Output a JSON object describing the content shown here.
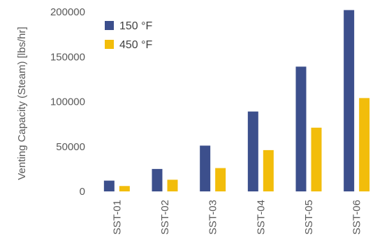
{
  "chart_data": {
    "type": "bar",
    "title": "",
    "xlabel": "",
    "ylabel": "Venting Capacity (Steam) [lbs/hr]",
    "categories": [
      "SST-01",
      "SST-02",
      "SST-03",
      "SST-04",
      "SST-05",
      "SST-06"
    ],
    "series": [
      {
        "name": "150 °F",
        "color": "#3c4f8c",
        "values": [
          12000,
          25000,
          51000,
          89000,
          139000,
          202000
        ]
      },
      {
        "name": "450 °F",
        "color": "#f2bd0b",
        "values": [
          6000,
          13000,
          26000,
          46000,
          71000,
          104000
        ]
      }
    ],
    "ylim": [
      0,
      200000
    ],
    "yticks": [
      "0",
      "50000",
      "100000",
      "150000",
      "200000"
    ],
    "grid": false,
    "legend_position": "top-left"
  }
}
